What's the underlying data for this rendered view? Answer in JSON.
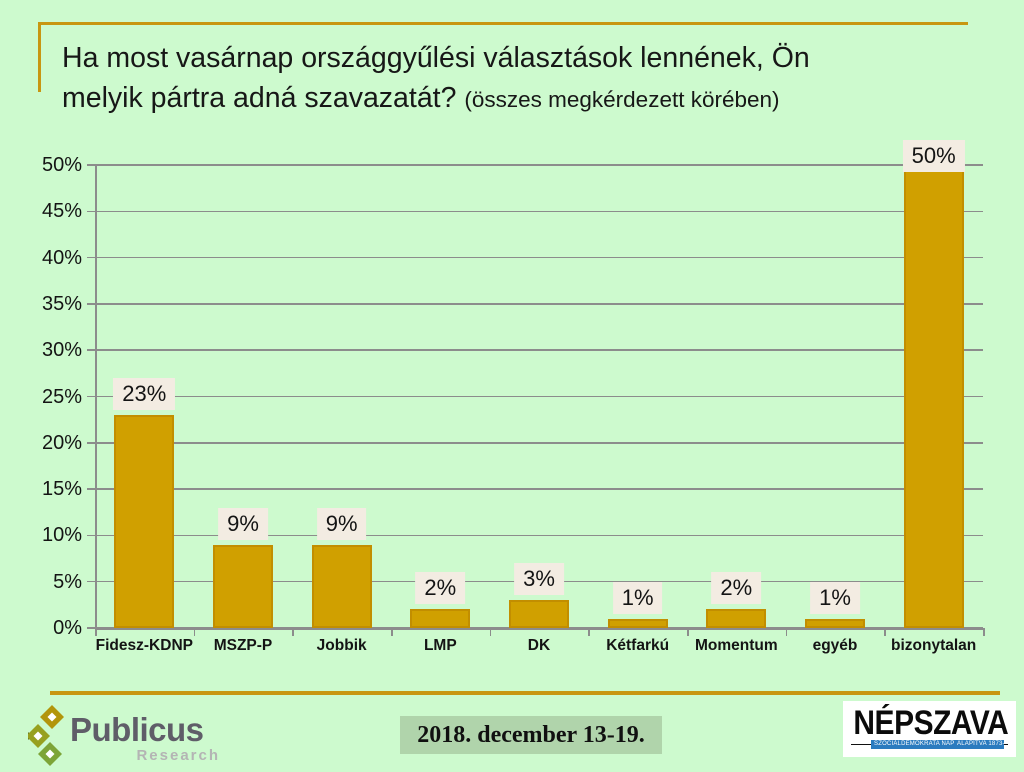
{
  "title": {
    "main": "Ha most vasárnap országgyűlési választások lennének, Ön melyik pártra adná szavazatát?",
    "suffix": "(összes megkérdezett körében)"
  },
  "chart_data": {
    "type": "bar",
    "categories": [
      "Fidesz-KDNP",
      "MSZP-P",
      "Jobbik",
      "LMP",
      "DK",
      "Kétfarkú",
      "Momentum",
      "egyéb",
      "bizonytalan"
    ],
    "values": [
      23,
      9,
      9,
      2,
      3,
      1,
      2,
      1,
      50
    ],
    "value_labels": [
      "23%",
      "9%",
      "9%",
      "2%",
      "3%",
      "1%",
      "2%",
      "1%",
      "50%"
    ],
    "ytick_labels": [
      "0%",
      "5%",
      "10%",
      "15%",
      "20%",
      "25%",
      "30%",
      "35%",
      "40%",
      "45%",
      "50%"
    ],
    "ylim": [
      0,
      50
    ],
    "ytick_step": 5,
    "grid": true,
    "legend": false,
    "xlabel": "",
    "ylabel": ""
  },
  "colors": {
    "background": "#CDFACE",
    "accent_gold": "#C89611",
    "axis_gray": "#8C8C8C",
    "bar_fill": "#D0A000",
    "bar_border": "#C28E00",
    "value_label_bg": "#F3ECE2",
    "date_badge_bg": "#B0D4AB",
    "nepszava_blue": "#2B7BBF"
  },
  "footer": {
    "publicus_name": "Publicus",
    "publicus_sub": "Research",
    "date_range": "2018. december 13-19.",
    "nepszava_name": "NÉPSZAVA",
    "nepszava_tagline_left": "SZOCIÁLDEMOKRATA NAPILAP",
    "nepszava_tagline_right": "ALAPÍTVA 1873-BAN"
  }
}
